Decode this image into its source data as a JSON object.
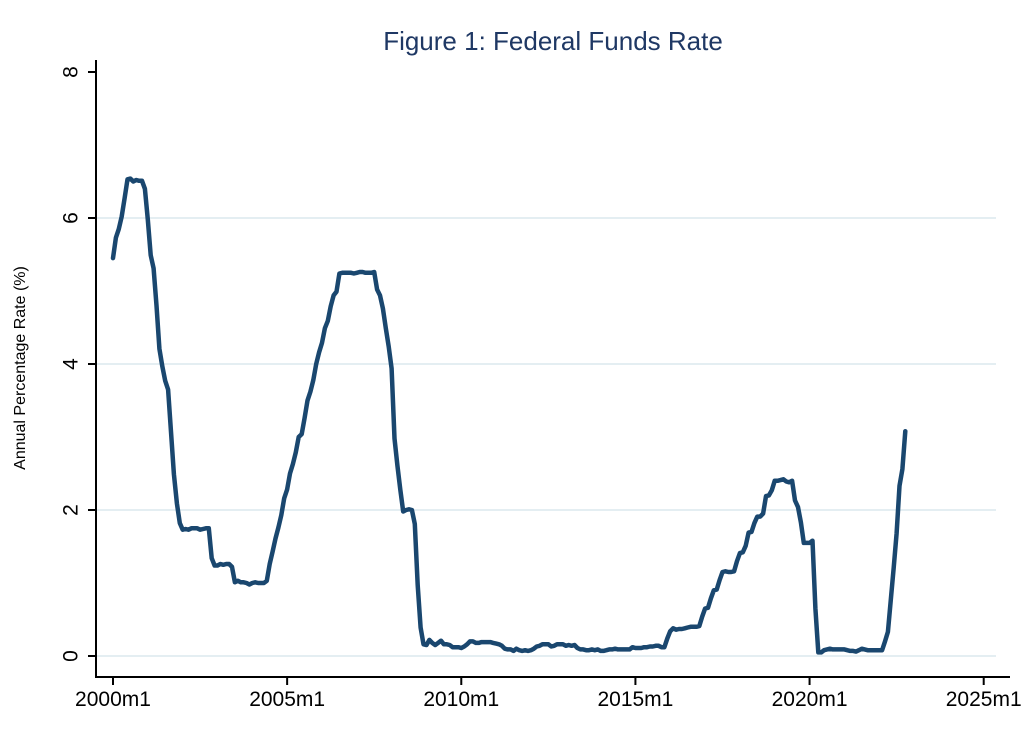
{
  "colors": {
    "title": "#1f3864",
    "line": "#1a476f",
    "grid": "#e4eef2",
    "axis": "#000000",
    "background": "#ffffff"
  },
  "chart_data": {
    "type": "line",
    "title": "Figure 1: Federal Funds Rate",
    "xlabel": "",
    "ylabel": "Annual Percentage Rate (%)",
    "ylim": [
      0,
      8
    ],
    "y_ticks": [
      0,
      2,
      4,
      6,
      8
    ],
    "grid_values": [
      0,
      2,
      4,
      6
    ],
    "grid": "horizontal-only",
    "legend": "none",
    "x_ticks": [
      {
        "label": "2000m1",
        "month": 0
      },
      {
        "label": "2005m1",
        "month": 60
      },
      {
        "label": "2010m1",
        "month": 120
      },
      {
        "label": "2015m1",
        "month": 180
      },
      {
        "label": "2020m1",
        "month": 240
      },
      {
        "label": "2025m1",
        "month": 300
      }
    ],
    "x_axis_range_months": [
      0,
      300
    ],
    "series": [
      {
        "name": "Federal Funds Rate",
        "frequency": "monthly",
        "start": "2000m1",
        "end": "2022m10",
        "values": [
          5.45,
          5.73,
          5.85,
          6.02,
          6.27,
          6.53,
          6.54,
          6.5,
          6.52,
          6.51,
          6.51,
          6.4,
          5.98,
          5.49,
          5.31,
          4.8,
          4.21,
          3.97,
          3.77,
          3.65,
          3.07,
          2.49,
          2.09,
          1.82,
          1.73,
          1.74,
          1.73,
          1.75,
          1.75,
          1.75,
          1.73,
          1.74,
          1.75,
          1.75,
          1.34,
          1.24,
          1.24,
          1.26,
          1.25,
          1.26,
          1.26,
          1.22,
          1.01,
          1.03,
          1.01,
          1.01,
          1.0,
          0.98,
          1.0,
          1.01,
          1.0,
          1.0,
          1.0,
          1.03,
          1.26,
          1.43,
          1.61,
          1.76,
          1.93,
          2.16,
          2.28,
          2.5,
          2.63,
          2.79,
          3.0,
          3.04,
          3.26,
          3.5,
          3.62,
          3.78,
          4.0,
          4.16,
          4.29,
          4.49,
          4.59,
          4.79,
          4.94,
          4.99,
          5.24,
          5.25,
          5.25,
          5.25,
          5.25,
          5.24,
          5.25,
          5.26,
          5.26,
          5.25,
          5.25,
          5.25,
          5.26,
          5.02,
          4.94,
          4.76,
          4.49,
          4.24,
          3.94,
          2.98,
          2.61,
          2.28,
          1.98,
          2.0,
          2.01,
          2.0,
          1.81,
          0.97,
          0.39,
          0.16,
          0.15,
          0.22,
          0.18,
          0.15,
          0.18,
          0.21,
          0.16,
          0.16,
          0.15,
          0.12,
          0.12,
          0.12,
          0.11,
          0.13,
          0.16,
          0.2,
          0.2,
          0.18,
          0.18,
          0.19,
          0.19,
          0.19,
          0.19,
          0.18,
          0.17,
          0.16,
          0.14,
          0.1,
          0.09,
          0.09,
          0.07,
          0.1,
          0.08,
          0.07,
          0.08,
          0.07,
          0.08,
          0.1,
          0.13,
          0.14,
          0.16,
          0.16,
          0.16,
          0.13,
          0.14,
          0.16,
          0.16,
          0.16,
          0.14,
          0.15,
          0.14,
          0.15,
          0.11,
          0.09,
          0.09,
          0.08,
          0.08,
          0.09,
          0.08,
          0.09,
          0.07,
          0.07,
          0.08,
          0.09,
          0.09,
          0.1,
          0.09,
          0.09,
          0.09,
          0.09,
          0.09,
          0.12,
          0.11,
          0.11,
          0.11,
          0.12,
          0.12,
          0.13,
          0.13,
          0.14,
          0.14,
          0.12,
          0.12,
          0.24,
          0.34,
          0.38,
          0.36,
          0.37,
          0.37,
          0.38,
          0.39,
          0.4,
          0.4,
          0.4,
          0.41,
          0.54,
          0.65,
          0.66,
          0.79,
          0.9,
          0.91,
          1.04,
          1.15,
          1.16,
          1.15,
          1.15,
          1.16,
          1.3,
          1.41,
          1.42,
          1.51,
          1.69,
          1.7,
          1.82,
          1.91,
          1.91,
          1.95,
          2.19,
          2.2,
          2.27,
          2.4,
          2.4,
          2.41,
          2.42,
          2.39,
          2.38,
          2.4,
          2.13,
          2.04,
          1.83,
          1.55,
          1.55,
          1.55,
          1.58,
          0.65,
          0.05,
          0.05,
          0.08,
          0.09,
          0.1,
          0.09,
          0.09,
          0.09,
          0.09,
          0.09,
          0.08,
          0.07,
          0.07,
          0.06,
          0.08,
          0.1,
          0.09,
          0.08,
          0.08,
          0.08,
          0.08,
          0.08,
          0.08,
          0.2,
          0.33,
          0.77,
          1.21,
          1.68,
          2.33,
          2.56,
          3.08
        ]
      }
    ]
  }
}
